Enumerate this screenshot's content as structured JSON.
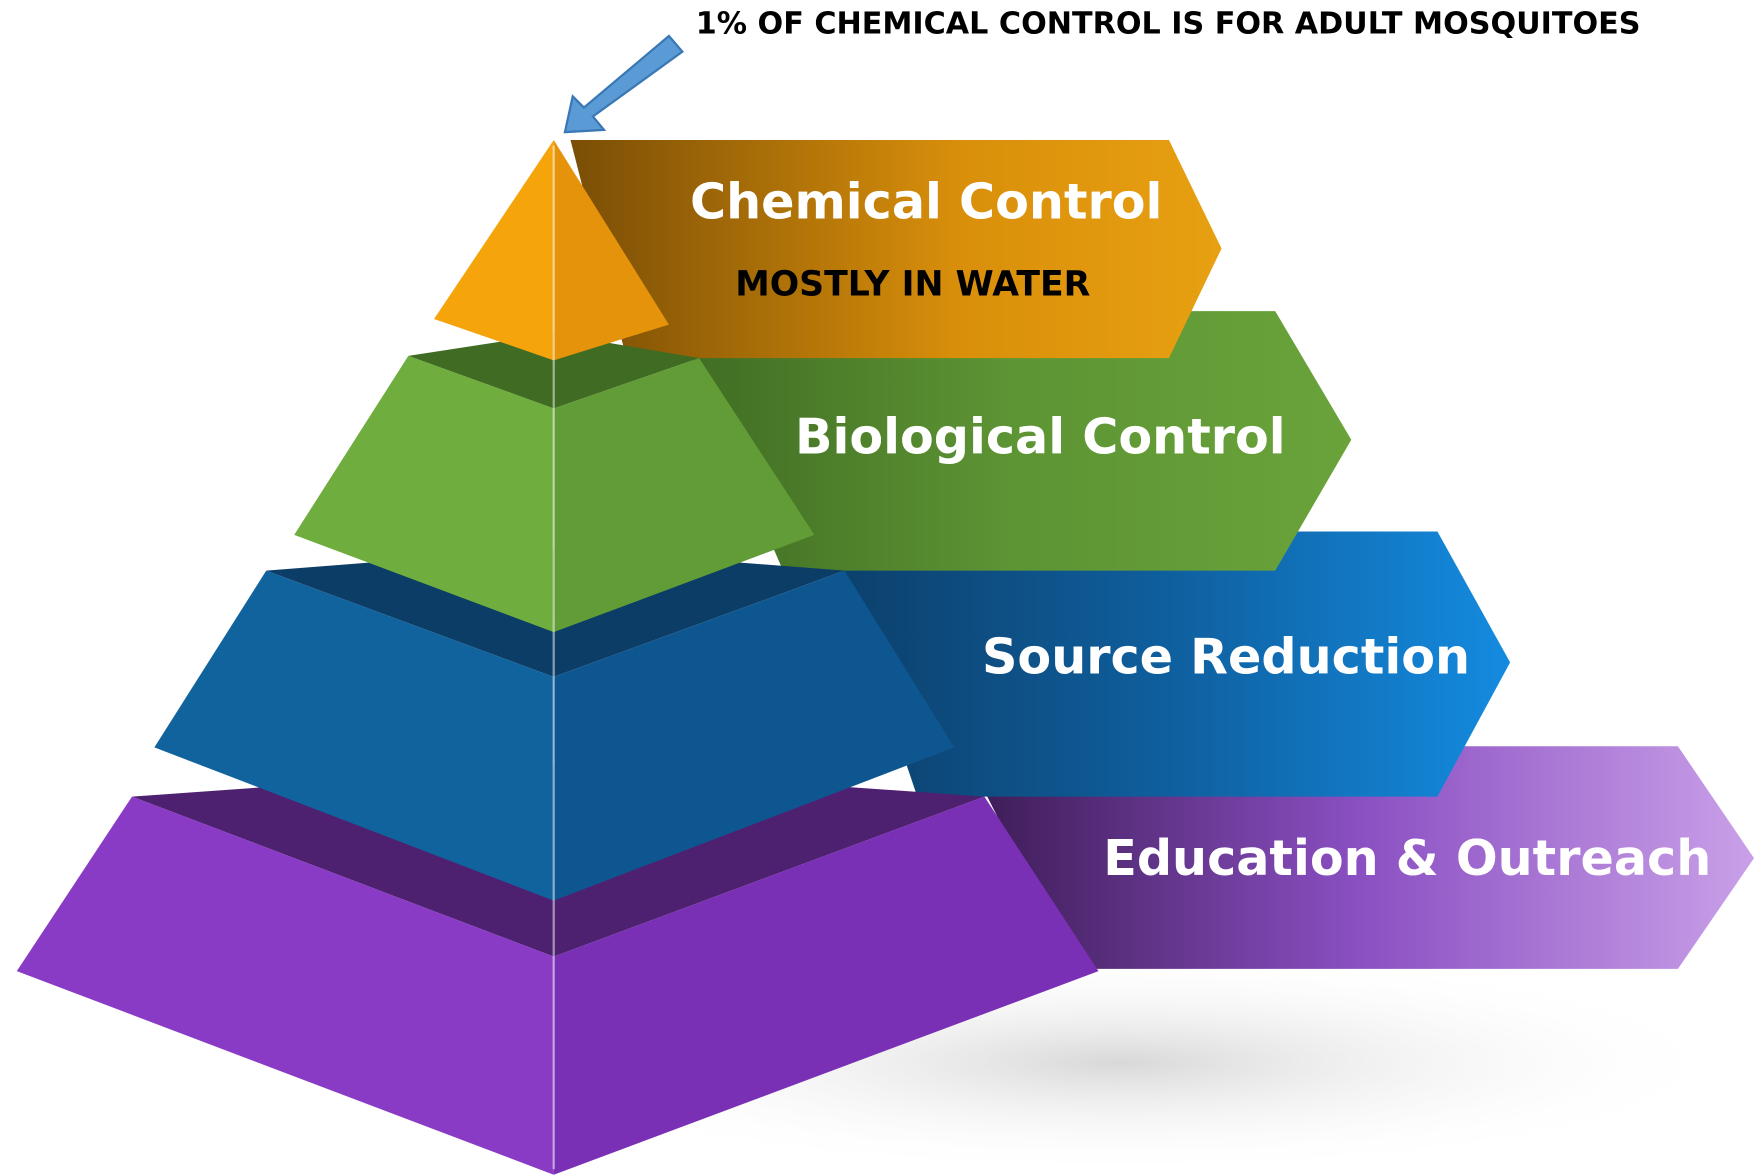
{
  "annotation": "1%  OF CHEMICAL CONTROL IS FOR ADULT MOSQUITOES",
  "layers": [
    {
      "label": "Chemical Control",
      "note": "MOSTLY IN WATER"
    },
    {
      "label": "Biological Control"
    },
    {
      "label": "Source Reduction"
    },
    {
      "label": "Education & Outreach"
    }
  ]
}
